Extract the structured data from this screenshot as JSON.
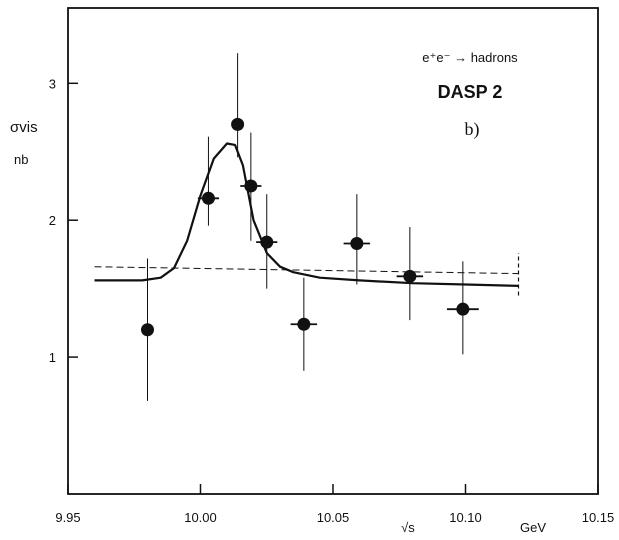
{
  "chart_data": {
    "type": "scatter",
    "title": "",
    "reaction": "e⁺e⁻ → hadrons",
    "experiment": "DASP 2",
    "panel_label": "b)",
    "xlabel": "√s",
    "xunit": "GeV",
    "ylabel": "σvis",
    "yunit": "nb",
    "xlim": [
      9.95,
      10.15
    ],
    "ylim": [
      0,
      3.55
    ],
    "x_ticks": [
      {
        "value": 9.95,
        "label": "9.95"
      },
      {
        "value": 10.0,
        "label": "10.00"
      },
      {
        "value": 10.05,
        "label": "10.05"
      },
      {
        "value": 10.1,
        "label": "10.10"
      },
      {
        "value": 10.15,
        "label": "10.15"
      }
    ],
    "y_ticks": [
      {
        "value": 1,
        "label": "1"
      },
      {
        "value": 2,
        "label": "2"
      },
      {
        "value": 3,
        "label": "3"
      }
    ],
    "series": [
      {
        "kind": "points_with_errors",
        "x": [
          9.98,
          10.003,
          10.014,
          10.019,
          10.025,
          10.039,
          10.059,
          10.079,
          10.099
        ],
        "y": [
          1.2,
          2.16,
          2.7,
          2.25,
          1.84,
          1.24,
          1.83,
          1.59,
          1.35
        ],
        "err_low": [
          0.52,
          0.2,
          0.24,
          0.4,
          0.34,
          0.34,
          0.3,
          0.32,
          0.33
        ],
        "err_high": [
          0.52,
          0.45,
          0.52,
          0.39,
          0.35,
          0.34,
          0.36,
          0.36,
          0.35
        ],
        "x_err": [
          0.0,
          0.004,
          0.0,
          0.004,
          0.004,
          0.005,
          0.005,
          0.005,
          0.006
        ]
      },
      {
        "kind": "fit_curve",
        "style": "solid",
        "x": [
          9.96,
          9.978,
          9.985,
          9.99,
          9.995,
          10.0,
          10.005,
          10.01,
          10.013,
          10.016,
          10.02,
          10.025,
          10.03,
          10.035,
          10.045,
          10.06,
          10.08,
          10.1,
          10.12
        ],
        "y": [
          1.56,
          1.56,
          1.58,
          1.65,
          1.85,
          2.18,
          2.45,
          2.56,
          2.55,
          2.4,
          2.0,
          1.76,
          1.66,
          1.62,
          1.58,
          1.56,
          1.54,
          1.53,
          1.52
        ]
      },
      {
        "kind": "background",
        "style": "dashed",
        "x": [
          9.96,
          10.12
        ],
        "y": [
          1.66,
          1.61
        ]
      }
    ],
    "end_uncertainty": {
      "x": 10.12,
      "y_low": 1.45,
      "y_high": 1.76
    },
    "grid": false
  }
}
